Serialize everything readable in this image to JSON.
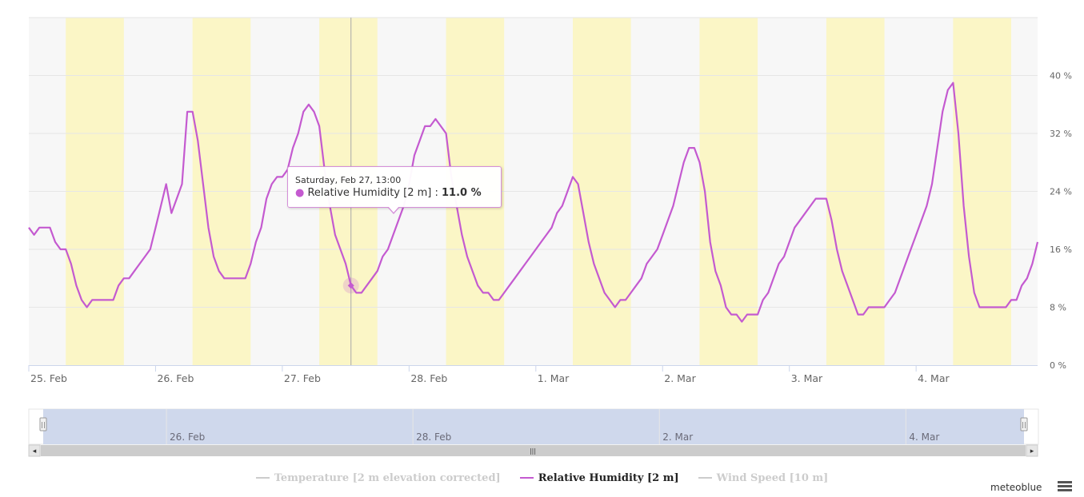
{
  "chart_data": {
    "type": "line",
    "title": "",
    "series": [
      {
        "name": "Relative Humidity [2 m]",
        "color": "#c45ad0",
        "unit": "%",
        "points": [
          [
            "2021-02-25T00:00",
            19
          ],
          [
            "2021-02-25T01:00",
            18
          ],
          [
            "2021-02-25T02:00",
            19
          ],
          [
            "2021-02-25T03:00",
            19
          ],
          [
            "2021-02-25T04:00",
            19
          ],
          [
            "2021-02-25T05:00",
            17
          ],
          [
            "2021-02-25T06:00",
            16
          ],
          [
            "2021-02-25T07:00",
            16
          ],
          [
            "2021-02-25T08:00",
            14
          ],
          [
            "2021-02-25T09:00",
            11
          ],
          [
            "2021-02-25T10:00",
            9
          ],
          [
            "2021-02-25T11:00",
            8
          ],
          [
            "2021-02-25T12:00",
            9
          ],
          [
            "2021-02-25T13:00",
            9
          ],
          [
            "2021-02-25T14:00",
            9
          ],
          [
            "2021-02-25T15:00",
            9
          ],
          [
            "2021-02-25T16:00",
            9
          ],
          [
            "2021-02-25T17:00",
            11
          ],
          [
            "2021-02-25T18:00",
            12
          ],
          [
            "2021-02-25T19:00",
            12
          ],
          [
            "2021-02-25T20:00",
            13
          ],
          [
            "2021-02-25T21:00",
            14
          ],
          [
            "2021-02-25T22:00",
            15
          ],
          [
            "2021-02-25T23:00",
            16
          ],
          [
            "2021-02-26T00:00",
            19
          ],
          [
            "2021-02-26T01:00",
            22
          ],
          [
            "2021-02-26T02:00",
            25
          ],
          [
            "2021-02-26T03:00",
            21
          ],
          [
            "2021-02-26T04:00",
            23
          ],
          [
            "2021-02-26T05:00",
            25
          ],
          [
            "2021-02-26T06:00",
            35
          ],
          [
            "2021-02-26T07:00",
            35
          ],
          [
            "2021-02-26T08:00",
            31
          ],
          [
            "2021-02-26T09:00",
            25
          ],
          [
            "2021-02-26T10:00",
            19
          ],
          [
            "2021-02-26T11:00",
            15
          ],
          [
            "2021-02-26T12:00",
            13
          ],
          [
            "2021-02-26T13:00",
            12
          ],
          [
            "2021-02-26T14:00",
            12
          ],
          [
            "2021-02-26T15:00",
            12
          ],
          [
            "2021-02-26T16:00",
            12
          ],
          [
            "2021-02-26T17:00",
            12
          ],
          [
            "2021-02-26T18:00",
            14
          ],
          [
            "2021-02-26T19:00",
            17
          ],
          [
            "2021-02-26T20:00",
            19
          ],
          [
            "2021-02-26T21:00",
            23
          ],
          [
            "2021-02-26T22:00",
            25
          ],
          [
            "2021-02-26T23:00",
            26
          ],
          [
            "2021-02-27T00:00",
            26
          ],
          [
            "2021-02-27T01:00",
            27
          ],
          [
            "2021-02-27T02:00",
            30
          ],
          [
            "2021-02-27T03:00",
            32
          ],
          [
            "2021-02-27T04:00",
            35
          ],
          [
            "2021-02-27T05:00",
            36
          ],
          [
            "2021-02-27T06:00",
            35
          ],
          [
            "2021-02-27T07:00",
            33
          ],
          [
            "2021-02-27T08:00",
            27
          ],
          [
            "2021-02-27T09:00",
            22
          ],
          [
            "2021-02-27T10:00",
            18
          ],
          [
            "2021-02-27T11:00",
            16
          ],
          [
            "2021-02-27T12:00",
            14
          ],
          [
            "2021-02-27T13:00",
            11
          ],
          [
            "2021-02-27T14:00",
            10
          ],
          [
            "2021-02-27T15:00",
            10
          ],
          [
            "2021-02-27T16:00",
            11
          ],
          [
            "2021-02-27T17:00",
            12
          ],
          [
            "2021-02-27T18:00",
            13
          ],
          [
            "2021-02-27T19:00",
            15
          ],
          [
            "2021-02-27T20:00",
            16
          ],
          [
            "2021-02-27T21:00",
            18
          ],
          [
            "2021-02-27T22:00",
            20
          ],
          [
            "2021-02-27T23:00",
            22
          ],
          [
            "2021-02-28T00:00",
            25
          ],
          [
            "2021-02-28T01:00",
            29
          ],
          [
            "2021-02-28T02:00",
            31
          ],
          [
            "2021-02-28T03:00",
            33
          ],
          [
            "2021-02-28T04:00",
            33
          ],
          [
            "2021-02-28T05:00",
            34
          ],
          [
            "2021-02-28T06:00",
            33
          ],
          [
            "2021-02-28T07:00",
            32
          ],
          [
            "2021-02-28T08:00",
            26
          ],
          [
            "2021-02-28T09:00",
            22
          ],
          [
            "2021-02-28T10:00",
            18
          ],
          [
            "2021-02-28T11:00",
            15
          ],
          [
            "2021-02-28T12:00",
            13
          ],
          [
            "2021-02-28T13:00",
            11
          ],
          [
            "2021-02-28T14:00",
            10
          ],
          [
            "2021-02-28T15:00",
            10
          ],
          [
            "2021-02-28T16:00",
            9
          ],
          [
            "2021-02-28T17:00",
            9
          ],
          [
            "2021-02-28T18:00",
            10
          ],
          [
            "2021-02-28T19:00",
            11
          ],
          [
            "2021-02-28T20:00",
            12
          ],
          [
            "2021-02-28T21:00",
            13
          ],
          [
            "2021-02-28T22:00",
            14
          ],
          [
            "2021-02-28T23:00",
            15
          ],
          [
            "2021-03-01T00:00",
            16
          ],
          [
            "2021-03-01T01:00",
            17
          ],
          [
            "2021-03-01T02:00",
            18
          ],
          [
            "2021-03-01T03:00",
            19
          ],
          [
            "2021-03-01T04:00",
            21
          ],
          [
            "2021-03-01T05:00",
            22
          ],
          [
            "2021-03-01T06:00",
            24
          ],
          [
            "2021-03-01T07:00",
            26
          ],
          [
            "2021-03-01T08:00",
            25
          ],
          [
            "2021-03-01T09:00",
            21
          ],
          [
            "2021-03-01T10:00",
            17
          ],
          [
            "2021-03-01T11:00",
            14
          ],
          [
            "2021-03-01T12:00",
            12
          ],
          [
            "2021-03-01T13:00",
            10
          ],
          [
            "2021-03-01T14:00",
            9
          ],
          [
            "2021-03-01T15:00",
            8
          ],
          [
            "2021-03-01T16:00",
            9
          ],
          [
            "2021-03-01T17:00",
            9
          ],
          [
            "2021-03-01T18:00",
            10
          ],
          [
            "2021-03-01T19:00",
            11
          ],
          [
            "2021-03-01T20:00",
            12
          ],
          [
            "2021-03-01T21:00",
            14
          ],
          [
            "2021-03-01T22:00",
            15
          ],
          [
            "2021-03-01T23:00",
            16
          ],
          [
            "2021-03-02T00:00",
            18
          ],
          [
            "2021-03-02T01:00",
            20
          ],
          [
            "2021-03-02T02:00",
            22
          ],
          [
            "2021-03-02T03:00",
            25
          ],
          [
            "2021-03-02T04:00",
            28
          ],
          [
            "2021-03-02T05:00",
            30
          ],
          [
            "2021-03-02T06:00",
            30
          ],
          [
            "2021-03-02T07:00",
            28
          ],
          [
            "2021-03-02T08:00",
            24
          ],
          [
            "2021-03-02T09:00",
            17
          ],
          [
            "2021-03-02T10:00",
            13
          ],
          [
            "2021-03-02T11:00",
            11
          ],
          [
            "2021-03-02T12:00",
            8
          ],
          [
            "2021-03-02T13:00",
            7
          ],
          [
            "2021-03-02T14:00",
            7
          ],
          [
            "2021-03-02T15:00",
            6
          ],
          [
            "2021-03-02T16:00",
            7
          ],
          [
            "2021-03-02T17:00",
            7
          ],
          [
            "2021-03-02T18:00",
            7
          ],
          [
            "2021-03-02T19:00",
            9
          ],
          [
            "2021-03-02T20:00",
            10
          ],
          [
            "2021-03-02T21:00",
            12
          ],
          [
            "2021-03-02T22:00",
            14
          ],
          [
            "2021-03-02T23:00",
            15
          ],
          [
            "2021-03-03T00:00",
            17
          ],
          [
            "2021-03-03T01:00",
            19
          ],
          [
            "2021-03-03T02:00",
            20
          ],
          [
            "2021-03-03T03:00",
            21
          ],
          [
            "2021-03-03T04:00",
            22
          ],
          [
            "2021-03-03T05:00",
            23
          ],
          [
            "2021-03-03T06:00",
            23
          ],
          [
            "2021-03-03T07:00",
            23
          ],
          [
            "2021-03-03T08:00",
            20
          ],
          [
            "2021-03-03T09:00",
            16
          ],
          [
            "2021-03-03T10:00",
            13
          ],
          [
            "2021-03-03T11:00",
            11
          ],
          [
            "2021-03-03T12:00",
            9
          ],
          [
            "2021-03-03T13:00",
            7
          ],
          [
            "2021-03-03T14:00",
            7
          ],
          [
            "2021-03-03T15:00",
            8
          ],
          [
            "2021-03-03T16:00",
            8
          ],
          [
            "2021-03-03T17:00",
            8
          ],
          [
            "2021-03-03T18:00",
            8
          ],
          [
            "2021-03-03T19:00",
            9
          ],
          [
            "2021-03-03T20:00",
            10
          ],
          [
            "2021-03-03T21:00",
            12
          ],
          [
            "2021-03-03T22:00",
            14
          ],
          [
            "2021-03-03T23:00",
            16
          ],
          [
            "2021-03-04T00:00",
            18
          ],
          [
            "2021-03-04T01:00",
            20
          ],
          [
            "2021-03-04T02:00",
            22
          ],
          [
            "2021-03-04T03:00",
            25
          ],
          [
            "2021-03-04T04:00",
            30
          ],
          [
            "2021-03-04T05:00",
            35
          ],
          [
            "2021-03-04T06:00",
            38
          ],
          [
            "2021-03-04T07:00",
            39
          ],
          [
            "2021-03-04T08:00",
            32
          ],
          [
            "2021-03-04T09:00",
            22
          ],
          [
            "2021-03-04T10:00",
            15
          ],
          [
            "2021-03-04T11:00",
            10
          ],
          [
            "2021-03-04T12:00",
            8
          ],
          [
            "2021-03-04T13:00",
            8
          ],
          [
            "2021-03-04T14:00",
            8
          ],
          [
            "2021-03-04T15:00",
            8
          ],
          [
            "2021-03-04T16:00",
            8
          ],
          [
            "2021-03-04T17:00",
            8
          ],
          [
            "2021-03-04T18:00",
            9
          ],
          [
            "2021-03-04T19:00",
            9
          ],
          [
            "2021-03-04T20:00",
            11
          ],
          [
            "2021-03-04T21:00",
            12
          ],
          [
            "2021-03-04T22:00",
            14
          ],
          [
            "2021-03-04T23:00",
            17
          ]
        ]
      }
    ],
    "x_range": [
      "2021-02-25T00:00",
      "2021-03-04T23:00"
    ],
    "x_tick_labels": [
      "25. Feb",
      "26. Feb",
      "27. Feb",
      "28. Feb",
      "1. Mar",
      "2. Mar",
      "3. Mar",
      "4. Mar"
    ],
    "y_range": [
      0,
      48
    ],
    "y_ticks": [
      0,
      8,
      16,
      24,
      32,
      40
    ],
    "y_tick_labels": [
      "0 %",
      "8 %",
      "16 %",
      "24 %",
      "32 %",
      "40 %"
    ],
    "y_axis_side": "right",
    "grid": true,
    "daytime_bands": [
      [
        "2021-02-25T07:00",
        "2021-02-25T18:00"
      ],
      [
        "2021-02-26T07:00",
        "2021-02-26T18:00"
      ],
      [
        "2021-02-27T07:00",
        "2021-02-27T18:00"
      ],
      [
        "2021-02-28T07:00",
        "2021-02-28T18:00"
      ],
      [
        "2021-03-01T07:00",
        "2021-03-01T18:00"
      ],
      [
        "2021-03-02T07:00",
        "2021-03-02T18:00"
      ],
      [
        "2021-03-03T07:00",
        "2021-03-03T18:00"
      ],
      [
        "2021-03-04T07:00",
        "2021-03-04T18:00"
      ]
    ],
    "band_color": "#fbf6c6",
    "background_color": "#f7f7f7",
    "hover": {
      "time": "2021-02-27T13:00",
      "value": 11,
      "tooltip_date": "Saturday, Feb 27, 13:00",
      "tooltip_series": "Relative Humidity [2 m]",
      "tooltip_value": "11.0 %"
    },
    "navigator": {
      "labels": [
        "26. Feb",
        "28. Feb",
        "2. Mar",
        "4. Mar"
      ],
      "label_times": [
        "2021-02-26T00:00",
        "2021-02-28T00:00",
        "2021-03-02T00:00",
        "2021-03-04T00:00"
      ],
      "selection_color": "#ccd6eb",
      "handle_glyph": "||",
      "scroll_left": "◂",
      "scroll_right": "▸",
      "scroll_grip": "|||"
    },
    "legend": {
      "placement": "bottom-center",
      "items": [
        {
          "label": "Temperature [2 m elevation corrected]",
          "visible": false
        },
        {
          "label": "Relative Humidity [2 m]",
          "visible": true
        },
        {
          "label": "Wind Speed [10 m]",
          "visible": false
        }
      ]
    }
  },
  "credits": "meteoblue"
}
